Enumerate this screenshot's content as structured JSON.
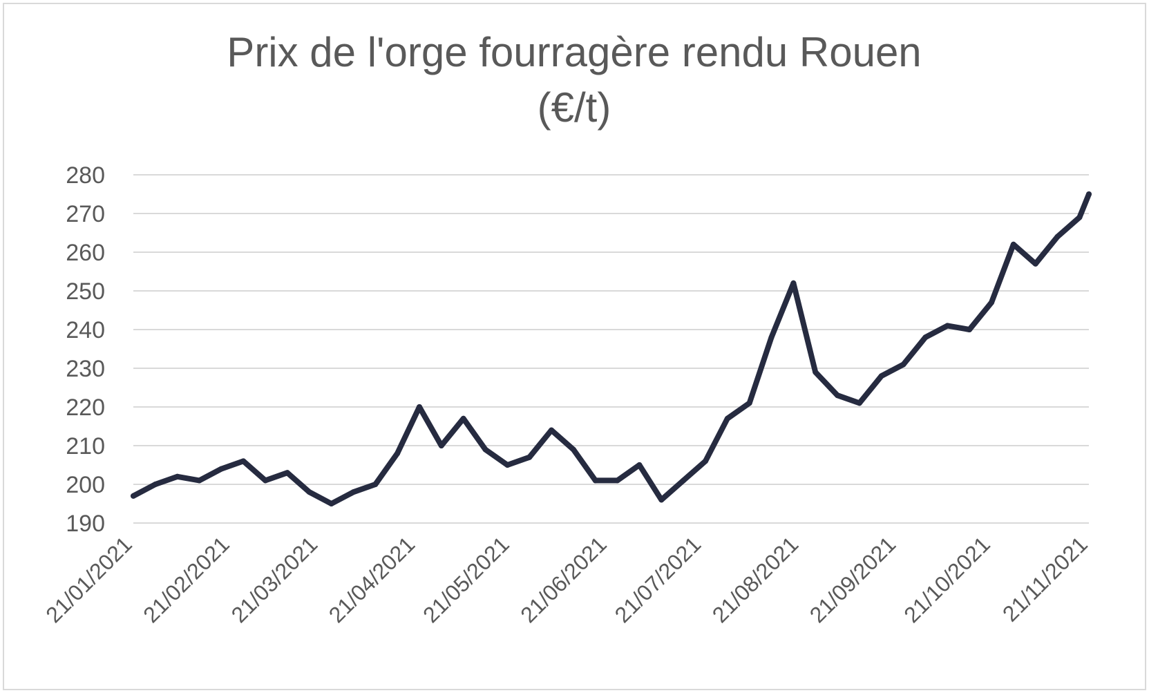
{
  "chart_data": {
    "type": "line",
    "title_lines": [
      "Prix de l'orge fourragère rendu Rouen",
      "(€/t)"
    ],
    "xlabel": "",
    "ylabel": "",
    "ylim": [
      190,
      280
    ],
    "yticks": [
      190,
      200,
      210,
      220,
      230,
      240,
      250,
      260,
      270,
      280
    ],
    "xlim": [
      "2021-01-21",
      "2021-11-21"
    ],
    "xticks": [
      {
        "date": "2021-01-21",
        "label": "21/01/2021"
      },
      {
        "date": "2021-02-21",
        "label": "21/02/2021"
      },
      {
        "date": "2021-03-21",
        "label": "21/03/2021"
      },
      {
        "date": "2021-04-21",
        "label": "21/04/2021"
      },
      {
        "date": "2021-05-21",
        "label": "21/05/2021"
      },
      {
        "date": "2021-06-21",
        "label": "21/06/2021"
      },
      {
        "date": "2021-07-21",
        "label": "21/07/2021"
      },
      {
        "date": "2021-08-21",
        "label": "21/08/2021"
      },
      {
        "date": "2021-09-21",
        "label": "21/09/2021"
      },
      {
        "date": "2021-10-21",
        "label": "21/10/2021"
      },
      {
        "date": "2021-11-21",
        "label": "21/11/2021"
      }
    ],
    "grid": "horizontal",
    "colors": {
      "line": "#262b40",
      "grid": "#d9d9d9",
      "text": "#595959",
      "border": "#d9d9d9"
    },
    "series": [
      {
        "x": [
          "2021-01-21",
          "2021-01-28",
          "2021-02-04",
          "2021-02-11",
          "2021-02-18",
          "2021-02-25",
          "2021-03-04",
          "2021-03-11",
          "2021-03-18",
          "2021-03-25",
          "2021-04-01",
          "2021-04-08",
          "2021-04-15",
          "2021-04-22",
          "2021-04-29",
          "2021-05-06",
          "2021-05-13",
          "2021-05-20",
          "2021-05-27",
          "2021-06-03",
          "2021-06-10",
          "2021-06-17",
          "2021-06-24",
          "2021-07-01",
          "2021-07-08",
          "2021-07-15",
          "2021-07-22",
          "2021-07-29",
          "2021-08-05",
          "2021-08-12",
          "2021-08-19",
          "2021-08-26",
          "2021-09-02",
          "2021-09-09",
          "2021-09-16",
          "2021-09-23",
          "2021-09-30",
          "2021-10-07",
          "2021-10-14",
          "2021-10-21",
          "2021-10-28",
          "2021-11-04",
          "2021-11-11",
          "2021-11-18",
          "2021-11-21"
        ],
        "values": [
          197,
          200,
          202,
          201,
          204,
          206,
          201,
          203,
          198,
          195,
          198,
          200,
          208,
          220,
          210,
          217,
          209,
          205,
          207,
          214,
          209,
          201,
          201,
          205,
          196,
          201,
          206,
          217,
          221,
          238,
          252,
          229,
          223,
          221,
          228,
          231,
          238,
          241,
          240,
          247,
          262,
          257,
          264,
          269,
          275
        ]
      }
    ]
  }
}
